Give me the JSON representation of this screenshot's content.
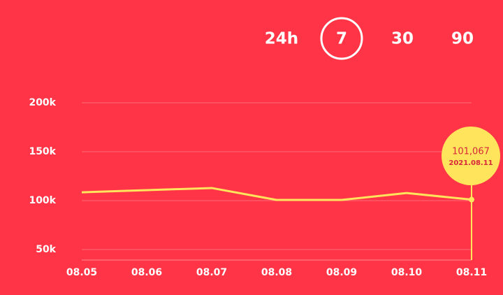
{
  "chart_data": {
    "type": "line",
    "range_options": [
      "24h",
      "7",
      "30",
      "90"
    ],
    "selected_option": 1,
    "categories": [
      "08.05",
      "08.06",
      "08.07",
      "08.08",
      "08.09",
      "08.10",
      "08.11"
    ],
    "values": [
      108500,
      110700,
      112900,
      100700,
      100700,
      107800,
      101067
    ],
    "color": "#ffe45c",
    "ylim": [
      39300,
      200000
    ],
    "yticks": [
      {
        "value": 50000,
        "label": "50k"
      },
      {
        "value": 100000,
        "label": "100k"
      },
      {
        "value": 150000,
        "label": "150k"
      },
      {
        "value": 200000,
        "label": "200k"
      }
    ],
    "grid": true,
    "tooltip": {
      "index": 6,
      "value_label": "101,067",
      "date": "2021.08.11"
    }
  }
}
